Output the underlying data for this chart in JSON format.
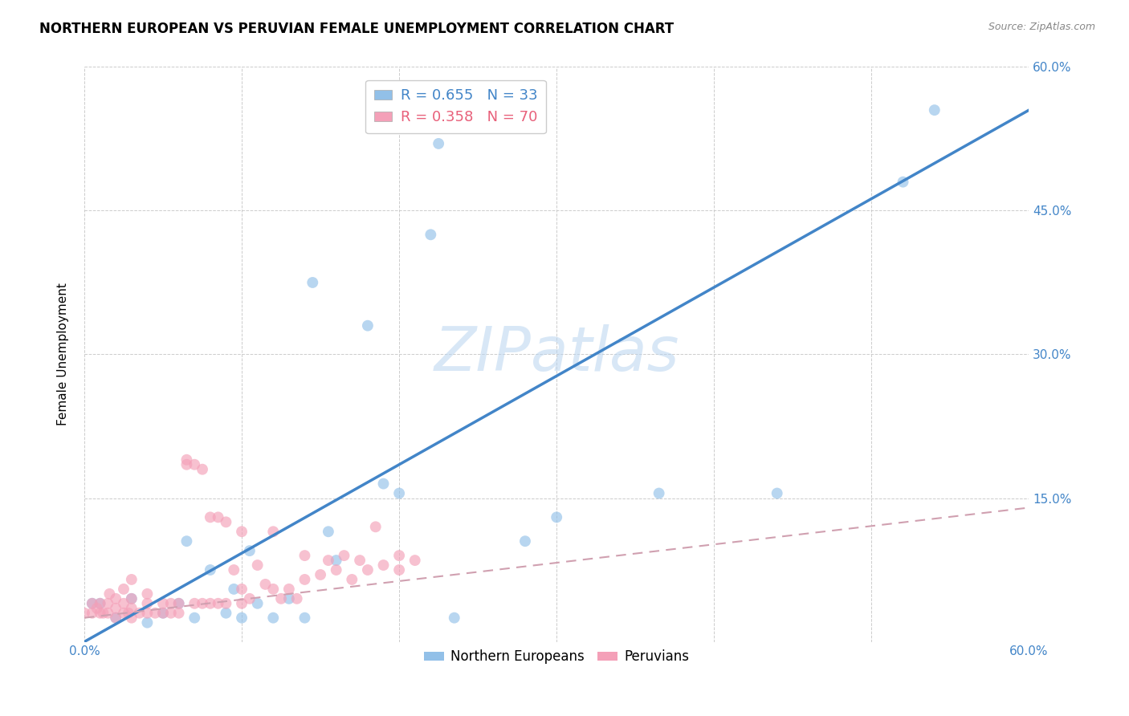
{
  "title": "NORTHERN EUROPEAN VS PERUVIAN FEMALE UNEMPLOYMENT CORRELATION CHART",
  "source": "Source: ZipAtlas.com",
  "ylabel": "Female Unemployment",
  "watermark": "ZIPatlas",
  "xlim": [
    0.0,
    0.6
  ],
  "ylim": [
    0.0,
    0.6
  ],
  "xtick_positions": [
    0.0,
    0.1,
    0.2,
    0.3,
    0.4,
    0.5,
    0.6
  ],
  "xtick_labels": [
    "0.0%",
    "",
    "",
    "",
    "",
    "",
    "60.0%"
  ],
  "ytick_positions": [
    0.0,
    0.15,
    0.3,
    0.45,
    0.6
  ],
  "ytick_labels_right": [
    "",
    "15.0%",
    "30.0%",
    "45.0%",
    "60.0%"
  ],
  "blue_color": "#92c0e8",
  "pink_color": "#f4a0b8",
  "blue_line_color": "#4285c8",
  "pink_line_color": "#e8607a",
  "pink_line_dashed_color": "#d0a0b0",
  "legend_blue_R": "R = 0.655",
  "legend_blue_N": "N = 33",
  "legend_pink_R": "R = 0.358",
  "legend_pink_N": "N = 70",
  "legend_R_color": "#4285c8",
  "legend_N_color": "#4285c8",
  "legend_R2_color": "#e8607a",
  "legend_N2_color": "#e8607a",
  "blue_points_x": [
    0.005,
    0.01,
    0.02,
    0.03,
    0.04,
    0.05,
    0.06,
    0.065,
    0.07,
    0.08,
    0.09,
    0.095,
    0.1,
    0.105,
    0.11,
    0.12,
    0.13,
    0.14,
    0.145,
    0.155,
    0.16,
    0.18,
    0.19,
    0.2,
    0.22,
    0.225,
    0.235,
    0.28,
    0.3,
    0.365,
    0.44,
    0.52,
    0.54
  ],
  "blue_points_y": [
    0.04,
    0.04,
    0.025,
    0.045,
    0.02,
    0.03,
    0.04,
    0.105,
    0.025,
    0.075,
    0.03,
    0.055,
    0.025,
    0.095,
    0.04,
    0.025,
    0.045,
    0.025,
    0.375,
    0.115,
    0.085,
    0.33,
    0.165,
    0.155,
    0.425,
    0.52,
    0.025,
    0.105,
    0.13,
    0.155,
    0.155,
    0.48,
    0.555
  ],
  "pink_points_x": [
    0.0,
    0.005,
    0.005,
    0.008,
    0.01,
    0.01,
    0.012,
    0.015,
    0.015,
    0.016,
    0.02,
    0.02,
    0.02,
    0.025,
    0.025,
    0.025,
    0.028,
    0.03,
    0.03,
    0.03,
    0.03,
    0.035,
    0.04,
    0.04,
    0.04,
    0.045,
    0.05,
    0.05,
    0.055,
    0.055,
    0.06,
    0.06,
    0.065,
    0.065,
    0.07,
    0.07,
    0.075,
    0.075,
    0.08,
    0.08,
    0.085,
    0.085,
    0.09,
    0.09,
    0.095,
    0.1,
    0.1,
    0.1,
    0.105,
    0.11,
    0.115,
    0.12,
    0.12,
    0.125,
    0.13,
    0.135,
    0.14,
    0.14,
    0.15,
    0.155,
    0.16,
    0.165,
    0.17,
    0.175,
    0.18,
    0.185,
    0.19,
    0.2,
    0.2,
    0.21
  ],
  "pink_points_y": [
    0.03,
    0.03,
    0.04,
    0.035,
    0.03,
    0.04,
    0.03,
    0.03,
    0.04,
    0.05,
    0.025,
    0.035,
    0.045,
    0.03,
    0.04,
    0.055,
    0.03,
    0.025,
    0.035,
    0.045,
    0.065,
    0.03,
    0.03,
    0.04,
    0.05,
    0.03,
    0.03,
    0.04,
    0.03,
    0.04,
    0.03,
    0.04,
    0.185,
    0.19,
    0.04,
    0.185,
    0.04,
    0.18,
    0.04,
    0.13,
    0.04,
    0.13,
    0.04,
    0.125,
    0.075,
    0.04,
    0.055,
    0.115,
    0.045,
    0.08,
    0.06,
    0.055,
    0.115,
    0.045,
    0.055,
    0.045,
    0.065,
    0.09,
    0.07,
    0.085,
    0.075,
    0.09,
    0.065,
    0.085,
    0.075,
    0.12,
    0.08,
    0.075,
    0.09,
    0.085
  ],
  "blue_line_x": [
    0.0,
    0.6
  ],
  "blue_line_y": [
    0.0,
    0.555
  ],
  "pink_line_x": [
    0.0,
    0.6
  ],
  "pink_line_y": [
    0.025,
    0.14
  ],
  "background_color": "#ffffff",
  "grid_color": "#cccccc",
  "tick_label_color": "#4285c8",
  "marker_size": 100,
  "marker_alpha": 0.65
}
